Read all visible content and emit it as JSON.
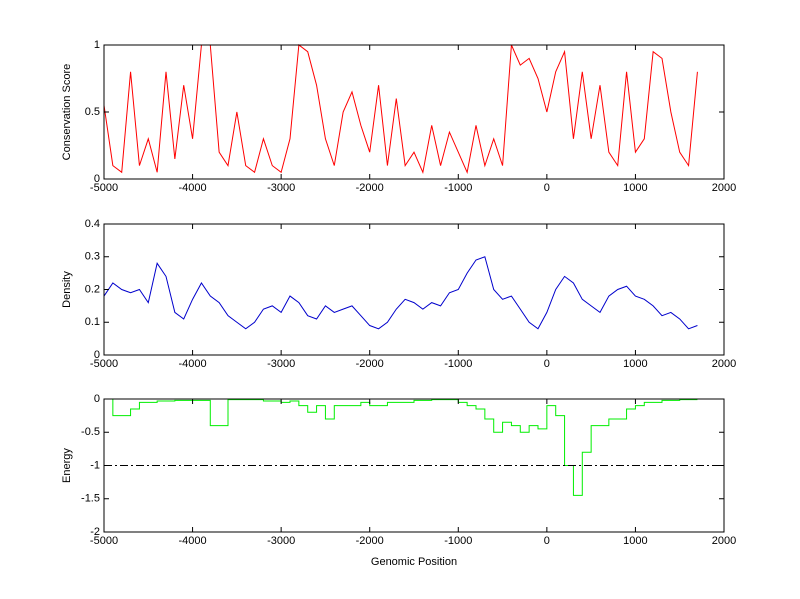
{
  "chart_data": [
    {
      "type": "line",
      "ylabel": "Conservation Score",
      "color": "#ff0000",
      "xlim": [
        -5000,
        2000
      ],
      "xticks": [
        -5000,
        -4000,
        -3000,
        -2000,
        -1000,
        0,
        1000,
        2000
      ],
      "ylim": [
        0,
        1
      ],
      "yticks": [
        0,
        0.5,
        1
      ],
      "x": [
        -5000,
        -4900,
        -4800,
        -4700,
        -4600,
        -4500,
        -4400,
        -4300,
        -4200,
        -4100,
        -4000,
        -3900,
        -3800,
        -3700,
        -3600,
        -3500,
        -3400,
        -3300,
        -3200,
        -3100,
        -3000,
        -2900,
        -2800,
        -2700,
        -2600,
        -2500,
        -2400,
        -2300,
        -2200,
        -2100,
        -2000,
        -1900,
        -1800,
        -1700,
        -1600,
        -1500,
        -1400,
        -1300,
        -1200,
        -1100,
        -1000,
        -900,
        -800,
        -700,
        -600,
        -500,
        -400,
        -300,
        -200,
        -100,
        0,
        100,
        200,
        300,
        400,
        500,
        600,
        700,
        800,
        900,
        1000,
        1100,
        1200,
        1300,
        1400,
        1500,
        1600,
        1700
      ],
      "values": [
        0.55,
        0.1,
        0.05,
        0.8,
        0.1,
        0.3,
        0.05,
        0.8,
        0.15,
        0.7,
        0.3,
        1,
        1,
        0.2,
        0.1,
        0.5,
        0.1,
        0.05,
        0.3,
        0.1,
        0.05,
        0.3,
        1,
        0.95,
        0.7,
        0.3,
        0.1,
        0.5,
        0.65,
        0.4,
        0.2,
        0.7,
        0.1,
        0.6,
        0.1,
        0.2,
        0.05,
        0.4,
        0.1,
        0.35,
        0.2,
        0.05,
        0.4,
        0.1,
        0.3,
        0.1,
        1,
        0.85,
        0.9,
        0.75,
        0.5,
        0.8,
        0.95,
        0.3,
        0.8,
        0.3,
        0.7,
        0.2,
        0.1,
        0.8,
        0.2,
        0.3,
        0.95,
        0.9,
        0.5,
        0.2,
        0.1,
        0.8
      ]
    },
    {
      "type": "line",
      "ylabel": "Density",
      "color": "#0000cc",
      "xlim": [
        -5000,
        2000
      ],
      "xticks": [
        -5000,
        -4000,
        -3000,
        -2000,
        -1000,
        0,
        1000,
        2000
      ],
      "ylim": [
        0,
        0.4
      ],
      "yticks": [
        0,
        0.1,
        0.2,
        0.3,
        0.4
      ],
      "x": [
        -5000,
        -4900,
        -4800,
        -4700,
        -4600,
        -4500,
        -4400,
        -4300,
        -4200,
        -4100,
        -4000,
        -3900,
        -3800,
        -3700,
        -3600,
        -3500,
        -3400,
        -3300,
        -3200,
        -3100,
        -3000,
        -2900,
        -2800,
        -2700,
        -2600,
        -2500,
        -2400,
        -2300,
        -2200,
        -2100,
        -2000,
        -1900,
        -1800,
        -1700,
        -1600,
        -1500,
        -1400,
        -1300,
        -1200,
        -1100,
        -1000,
        -900,
        -800,
        -700,
        -600,
        -500,
        -400,
        -300,
        -200,
        -100,
        0,
        100,
        200,
        300,
        400,
        500,
        600,
        700,
        800,
        900,
        1000,
        1100,
        1200,
        1300,
        1400,
        1500,
        1600,
        1700
      ],
      "values": [
        0.18,
        0.22,
        0.2,
        0.19,
        0.2,
        0.16,
        0.28,
        0.24,
        0.13,
        0.11,
        0.17,
        0.22,
        0.18,
        0.16,
        0.12,
        0.1,
        0.08,
        0.1,
        0.14,
        0.15,
        0.13,
        0.18,
        0.16,
        0.12,
        0.11,
        0.15,
        0.13,
        0.14,
        0.15,
        0.12,
        0.09,
        0.08,
        0.1,
        0.14,
        0.17,
        0.16,
        0.14,
        0.16,
        0.15,
        0.19,
        0.2,
        0.25,
        0.29,
        0.3,
        0.2,
        0.17,
        0.18,
        0.14,
        0.1,
        0.08,
        0.13,
        0.2,
        0.24,
        0.22,
        0.17,
        0.15,
        0.13,
        0.18,
        0.2,
        0.21,
        0.18,
        0.17,
        0.15,
        0.12,
        0.13,
        0.11,
        0.08,
        0.09
      ]
    },
    {
      "type": "line",
      "ylabel": "Energy",
      "xlabel": "Genomic Position",
      "color": "#00ee00",
      "drawstyle": "steps",
      "hline": -1,
      "hline_color": "#000000",
      "xlim": [
        -5000,
        2000
      ],
      "xticks": [
        -5000,
        -4000,
        -3000,
        -2000,
        -1000,
        0,
        1000,
        2000
      ],
      "ylim": [
        -2,
        0
      ],
      "yticks": [
        -2,
        -1.5,
        -1,
        -0.5,
        0
      ],
      "x": [
        -5000,
        -4900,
        -4800,
        -4700,
        -4600,
        -4500,
        -4400,
        -4300,
        -4200,
        -4100,
        -4000,
        -3900,
        -3800,
        -3700,
        -3600,
        -3500,
        -3400,
        -3300,
        -3200,
        -3100,
        -3000,
        -2900,
        -2800,
        -2700,
        -2600,
        -2500,
        -2400,
        -2300,
        -2200,
        -2100,
        -2000,
        -1900,
        -1800,
        -1700,
        -1600,
        -1500,
        -1400,
        -1300,
        -1200,
        -1100,
        -1000,
        -900,
        -800,
        -700,
        -600,
        -500,
        -400,
        -300,
        -200,
        -100,
        0,
        100,
        200,
        300,
        400,
        500,
        600,
        700,
        800,
        900,
        1000,
        1100,
        1200,
        1300,
        1400,
        1500,
        1600,
        1700
      ],
      "values": [
        0,
        -0.25,
        -0.25,
        -0.15,
        -0.05,
        -0.05,
        -0.03,
        -0.03,
        -0.02,
        -0.02,
        -0.02,
        -0.02,
        -0.4,
        -0.4,
        -0.01,
        -0.01,
        -0.01,
        -0.01,
        -0.03,
        -0.03,
        -0.05,
        -0.03,
        -0.1,
        -0.2,
        -0.1,
        -0.3,
        -0.1,
        -0.1,
        -0.1,
        -0.05,
        -0.1,
        -0.1,
        -0.05,
        -0.05,
        -0.05,
        -0.02,
        -0.02,
        -0.01,
        -0.01,
        -0.01,
        -0.05,
        -0.1,
        -0.15,
        -0.3,
        -0.5,
        -0.35,
        -0.4,
        -0.5,
        -0.4,
        -0.45,
        -0.1,
        -0.25,
        -1.0,
        -1.45,
        -0.8,
        -0.4,
        -0.4,
        -0.3,
        -0.3,
        -0.15,
        -0.1,
        -0.05,
        -0.05,
        -0.02,
        -0.02,
        -0.01,
        -0.01,
        -0.01
      ]
    }
  ]
}
